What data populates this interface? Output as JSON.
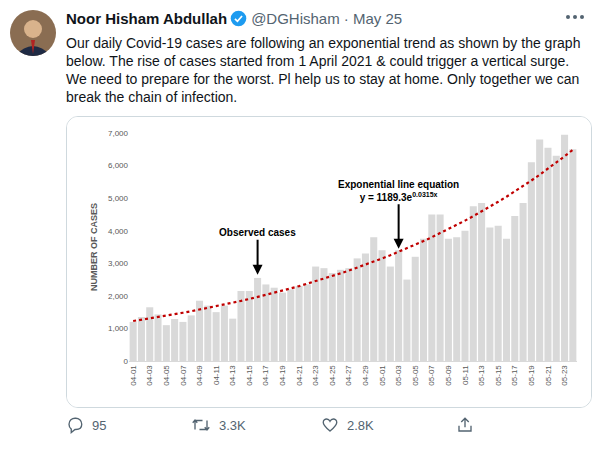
{
  "tweet": {
    "name": "Noor Hisham Abdullah",
    "handle": "@DGHisham · May 25",
    "text": "Our daily Covid-19 cases are following an exponential trend as shown by the graph below. The rise of cases started from 1 April 2021 & could trigger a vertical surge. We need to prepare for the worst. Pl help us to stay at home. Only together we can break the chain of infection.",
    "replies": "95",
    "retweets": "3.3K",
    "likes": "2.8K"
  },
  "chart_data": {
    "type": "bar",
    "categories": [
      "04-01",
      null,
      "04-03",
      null,
      "04-05",
      null,
      "04-07",
      null,
      "04-09",
      null,
      "04-11",
      null,
      "04-13",
      null,
      "04-15",
      null,
      "04-17",
      null,
      "04-19",
      null,
      "04-21",
      null,
      "04-23",
      null,
      "04-25",
      null,
      "04-27",
      null,
      "04-29",
      null,
      "05-01",
      null,
      "05-03",
      null,
      "05-05",
      null,
      "05-07",
      null,
      "05-09",
      null,
      "05-11",
      null,
      "05-13",
      null,
      "05-15",
      null,
      "05-17",
      null,
      "05-19",
      null,
      "05-21",
      null,
      "05-23",
      null
    ],
    "series": [
      {
        "type": "bar",
        "color": "#d9d9d9",
        "values": [
          1200,
          1350,
          1650,
          1430,
          1100,
          1290,
          1200,
          1400,
          1850,
          1700,
          1500,
          1700,
          1300,
          2150,
          2150,
          2550,
          2350,
          2250,
          2100,
          2200,
          2300,
          2350,
          2900,
          2850,
          2700,
          2800,
          2850,
          3150,
          3300,
          3800,
          3400,
          2900,
          3400,
          2500,
          3200,
          3750,
          4500,
          4500,
          3750,
          3800,
          4000,
          4750,
          4850,
          4100,
          4150,
          3750,
          4450,
          4850,
          6100,
          6800,
          6550,
          6300,
          6950,
          6500
        ]
      },
      {
        "type": "line",
        "color": "#c00000",
        "line_style": "dotted",
        "values": [
          1227,
          1266,
          1306,
          1348,
          1391,
          1435,
          1481,
          1528,
          1577,
          1627,
          1679,
          1733,
          1788,
          1845,
          1904,
          1965,
          2028,
          2092,
          2159,
          2228,
          2299,
          2373,
          2448,
          2526,
          2607,
          2690,
          2776,
          2865,
          2956,
          3051,
          3148,
          3248,
          3352,
          3459,
          3569,
          3683,
          3801,
          3922,
          4047,
          4177,
          4310,
          4447,
          4589,
          4736,
          4887,
          5043,
          5204,
          5370,
          5542,
          5719,
          5902,
          6090,
          6285,
          6485
        ]
      }
    ],
    "ylabel": "NUMBER OF CASES",
    "ylim": [
      0,
      7000
    ],
    "yticks": [
      0,
      {
        "value": 1000,
        "label": "1,000"
      },
      {
        "value": 2000,
        "label": "2,000"
      },
      {
        "value": 3000,
        "label": "3,000"
      },
      {
        "value": 4000,
        "label": "4,000"
      },
      {
        "value": 5000,
        "label": "5,000"
      },
      {
        "value": 6000,
        "label": "6,000"
      },
      {
        "value": 7000,
        "label": "7,000"
      }
    ],
    "grid": false,
    "annotations": [
      {
        "text": "Observed cases",
        "at": 15,
        "y": 2650
      },
      {
        "text": "Exponential line equation",
        "formula": "y = 1189.3e",
        "exponent": "0.0315x",
        "at": 32,
        "y": 3450
      }
    ]
  }
}
